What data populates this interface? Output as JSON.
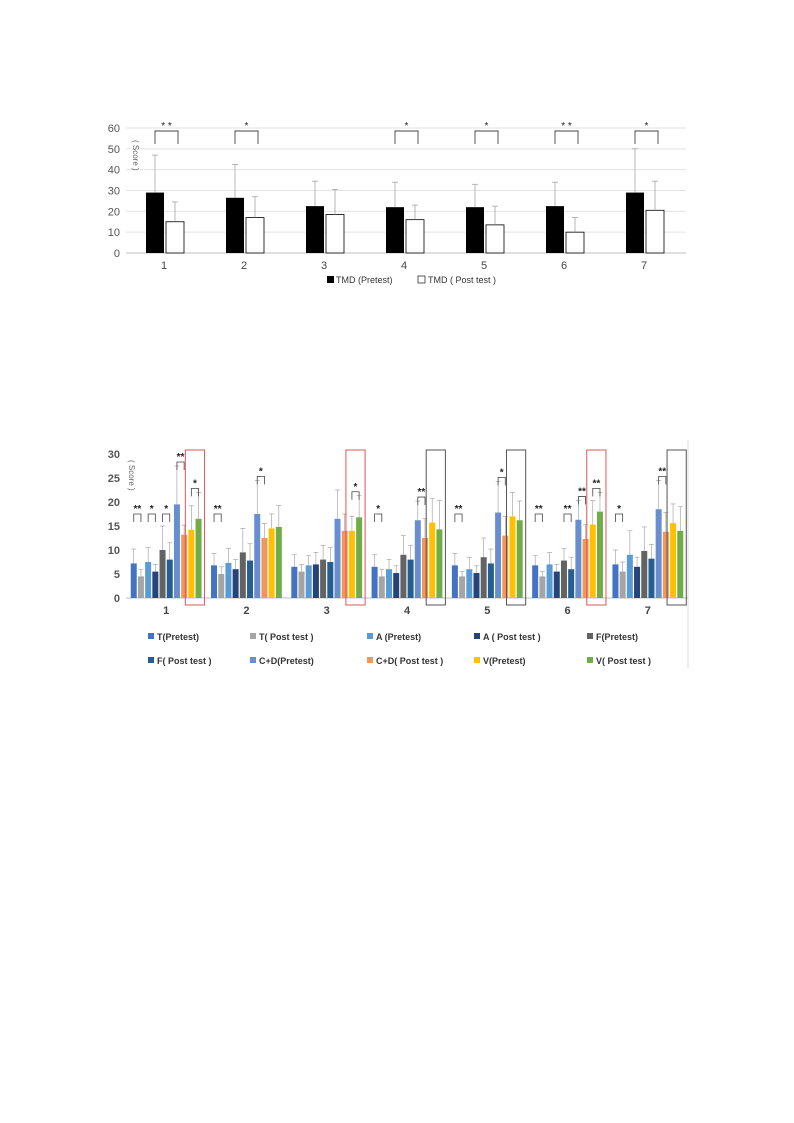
{
  "chart_data": [
    {
      "type": "bar",
      "ylabel": "( Score )",
      "ylim": [
        0,
        60
      ],
      "yticks": [
        0,
        10,
        20,
        30,
        40,
        50,
        60
      ],
      "categories": [
        "1",
        "2",
        "3",
        "4",
        "5",
        "6",
        "7"
      ],
      "series": [
        {
          "name": "TMD (Pretest)",
          "color": "#000000",
          "values": [
            29,
            26.5,
            22.5,
            22,
            22,
            22.5,
            29
          ],
          "err": [
            18,
            16,
            12,
            12,
            11,
            11.5,
            21
          ]
        },
        {
          "name": "TMD ( Post test )",
          "color": "#ffffff",
          "values": [
            15,
            17,
            18.5,
            16,
            13.5,
            10,
            20.5
          ],
          "err": [
            9.5,
            10,
            12,
            7,
            9,
            7,
            14
          ]
        }
      ],
      "significance": [
        "* *",
        "*",
        "",
        "*",
        "*",
        "* *",
        "*"
      ],
      "grid": true,
      "legend_position": "bottom"
    },
    {
      "type": "bar",
      "ylabel": "( Score )",
      "ylim": [
        0,
        30
      ],
      "yticks": [
        0,
        5,
        10,
        15,
        20,
        25,
        30
      ],
      "categories": [
        "1",
        "2",
        "3",
        "4",
        "5",
        "6",
        "7"
      ],
      "series": [
        {
          "name": "T(Pretest)",
          "color": "#4472c4",
          "values": [
            7.2,
            6.8,
            6.5,
            6.5,
            6.8,
            6.8,
            7.0
          ],
          "err": [
            3,
            2.5,
            2.5,
            2.5,
            2.5,
            2,
            3
          ]
        },
        {
          "name": "T( Post test )",
          "color": "#a5a5a5",
          "values": [
            4.5,
            5.0,
            5.5,
            4.5,
            4.5,
            4.5,
            5.5
          ],
          "err": [
            1.5,
            1.5,
            1.5,
            1.5,
            1,
            1,
            2
          ]
        },
        {
          "name": "A (Pretest)",
          "color": "#5b9bd5",
          "values": [
            7.5,
            7.3,
            6.8,
            6.0,
            6.0,
            7.0,
            9.0
          ],
          "err": [
            3,
            3,
            2,
            2,
            2.5,
            2.5,
            5
          ]
        },
        {
          "name": "A ( Post test )",
          "color": "#264478",
          "values": [
            5.5,
            6.0,
            7.0,
            5.2,
            5.2,
            5.5,
            6.5
          ],
          "err": [
            1.5,
            2,
            2.5,
            1.5,
            1.5,
            1.5,
            2
          ]
        },
        {
          "name": "F(Pretest)",
          "color": "#636363",
          "values": [
            10.0,
            9.5,
            8.0,
            9.0,
            8.5,
            7.8,
            9.8
          ],
          "err": [
            5,
            5,
            3,
            4,
            4,
            2.5,
            5
          ]
        },
        {
          "name": "F( Post test )",
          "color": "#255e91",
          "values": [
            8.0,
            7.8,
            7.5,
            8.0,
            7.2,
            6.0,
            8.2
          ],
          "err": [
            3.5,
            3.5,
            3,
            3,
            3,
            2.5,
            3
          ]
        },
        {
          "name": "C+D(Pretest)",
          "color": "#698ed0",
          "values": [
            19.5,
            17.5,
            16.5,
            16.2,
            17.8,
            16.3,
            18.5
          ],
          "err": [
            8,
            7,
            6,
            4,
            6.5,
            4,
            6
          ]
        },
        {
          "name": "C+D( Post test )",
          "color": "#f1975a",
          "values": [
            13.2,
            12.5,
            14.0,
            12.5,
            13.0,
            12.3,
            13.8
          ],
          "err": [
            2,
            3,
            3.5,
            4,
            4,
            3,
            4
          ]
        },
        {
          "name": "V(Pretest)",
          "color": "#ffc000",
          "values": [
            14.2,
            14.5,
            14.0,
            15.7,
            17.0,
            15.3,
            15.6
          ],
          "err": [
            5,
            3,
            3,
            5,
            5,
            5,
            4
          ]
        },
        {
          "name": "V( Post test )",
          "color": "#70ad47",
          "values": [
            16.5,
            14.8,
            16.8,
            14.3,
            16.2,
            18.0,
            14.0
          ],
          "err": [
            5.5,
            4.5,
            4.5,
            6,
            4,
            4,
            5
          ]
        }
      ],
      "significance": [
        [
          {
            "pair": [
              0,
              1
            ],
            "label": "**"
          },
          {
            "pair": [
              2,
              3
            ],
            "label": "*"
          },
          {
            "pair": [
              4,
              5
            ],
            "label": "*"
          },
          {
            "pair": [
              6,
              7
            ],
            "label": "**"
          },
          {
            "pair": [
              8,
              9
            ],
            "label": "*"
          }
        ],
        [
          {
            "pair": [
              0,
              1
            ],
            "label": "**"
          },
          {
            "pair": [
              6,
              7
            ],
            "label": "*"
          }
        ],
        [
          {
            "pair": [
              8,
              9
            ],
            "label": "*"
          }
        ],
        [
          {
            "pair": [
              0,
              1
            ],
            "label": "*"
          },
          {
            "pair": [
              6,
              7
            ],
            "label": "**"
          }
        ],
        [
          {
            "pair": [
              0,
              1
            ],
            "label": "**"
          },
          {
            "pair": [
              6,
              7
            ],
            "label": "*"
          }
        ],
        [
          {
            "pair": [
              0,
              1
            ],
            "label": "**"
          },
          {
            "pair": [
              4,
              5
            ],
            "label": "**"
          },
          {
            "pair": [
              6,
              7
            ],
            "label": "**"
          },
          {
            "pair": [
              8,
              9
            ],
            "label": "**"
          }
        ],
        [
          {
            "pair": [
              0,
              1
            ],
            "label": "*"
          },
          {
            "pair": [
              6,
              7
            ],
            "label": "**"
          }
        ]
      ],
      "highlight_boxes": [
        {
          "category": 0,
          "color": "#e05555"
        },
        {
          "category": 2,
          "color": "#e05555"
        },
        {
          "category": 3,
          "color": "#555555"
        },
        {
          "category": 4,
          "color": "#555555"
        },
        {
          "category": 5,
          "color": "#e05555"
        },
        {
          "category": 6,
          "color": "#555555"
        }
      ],
      "legend_position": "bottom"
    }
  ]
}
